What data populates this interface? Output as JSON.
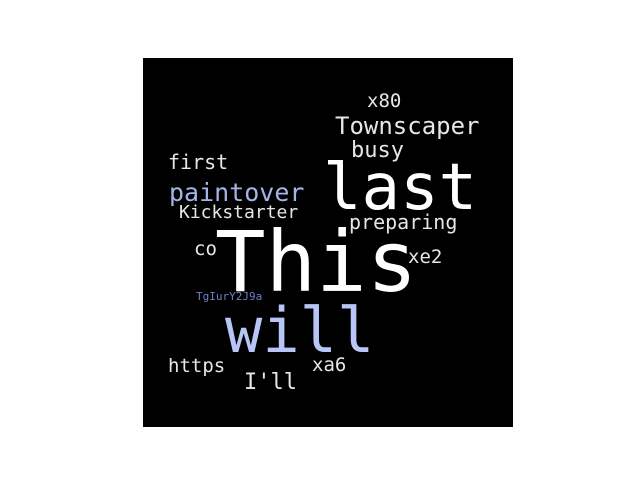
{
  "colors": {
    "background": "#000000",
    "white": "#ffffff",
    "light": "#e6e6e6",
    "lavender": "#b7c5f7",
    "periwinkle": "#a3b4e8",
    "slate": "#6f80c8"
  },
  "words": [
    {
      "id": "word-this",
      "text": "This",
      "color": "white"
    },
    {
      "id": "word-last",
      "text": "last",
      "color": "white"
    },
    {
      "id": "word-will",
      "text": "will",
      "color": "lavender"
    },
    {
      "id": "word-townscaper",
      "text": "Townscaper",
      "color": "light"
    },
    {
      "id": "word-paintover",
      "text": "paintover",
      "color": "periwinkle"
    },
    {
      "id": "word-busy",
      "text": "busy",
      "color": "light"
    },
    {
      "id": "word-kickstarter",
      "text": "Kickstarter",
      "color": "light"
    },
    {
      "id": "word-preparing",
      "text": "preparing",
      "color": "light"
    },
    {
      "id": "word-first",
      "text": "first",
      "color": "light"
    },
    {
      "id": "word-x80",
      "text": "x80",
      "color": "light"
    },
    {
      "id": "word-xe2",
      "text": "xe2",
      "color": "light"
    },
    {
      "id": "word-co",
      "text": "co",
      "color": "light"
    },
    {
      "id": "word-https",
      "text": "https",
      "color": "light"
    },
    {
      "id": "word-ill",
      "text": "I'll",
      "color": "light"
    },
    {
      "id": "word-xa6",
      "text": "xa6",
      "color": "light"
    },
    {
      "id": "word-tglur",
      "text": "TgIurY2J9a",
      "color": "slate"
    }
  ]
}
